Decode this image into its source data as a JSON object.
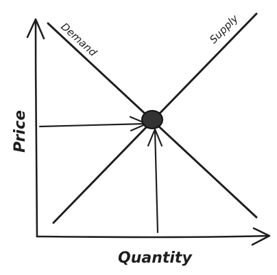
{
  "diagram": {
    "axes": {
      "x_label": "Quantity",
      "y_label": "Price"
    },
    "curves": {
      "demand_label": "Demand",
      "supply_label": "Supply"
    },
    "colors": {
      "ink": "#1e1e1e",
      "background": "#ffffff",
      "equilibrium_fill": "#333333"
    }
  }
}
